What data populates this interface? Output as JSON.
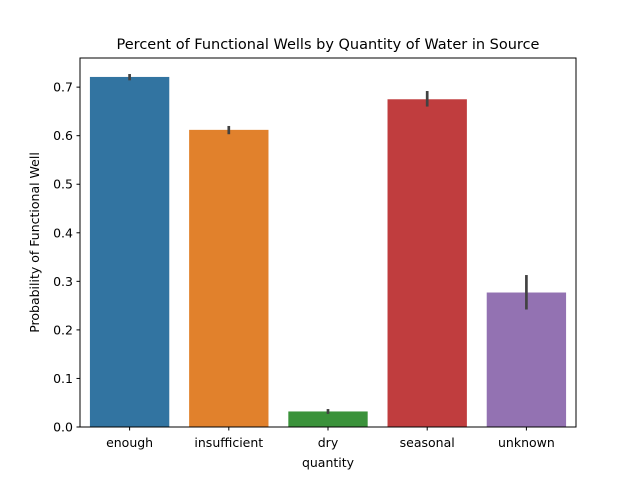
{
  "chart_data": {
    "type": "bar",
    "title": "Percent of Functional Wells by Quantity of Water in Source",
    "xlabel": "quantity",
    "ylabel": "Probability of Functional Well",
    "ylim": [
      0,
      0.76
    ],
    "yticks": [
      "0.0",
      "0.1",
      "0.2",
      "0.3",
      "0.4",
      "0.5",
      "0.6",
      "0.7"
    ],
    "categories": [
      "enough",
      "insufficient",
      "dry",
      "seasonal",
      "unknown"
    ],
    "values": [
      0.721,
      0.612,
      0.032,
      0.675,
      0.277
    ],
    "ci_low": [
      0.714,
      0.603,
      0.027,
      0.66,
      0.242
    ],
    "ci_high": [
      0.727,
      0.62,
      0.037,
      0.692,
      0.313
    ],
    "colors": [
      "#3274a1",
      "#e1812c",
      "#3a923a",
      "#c03d3e",
      "#9372b2"
    ],
    "grid": false,
    "legend": "none"
  }
}
